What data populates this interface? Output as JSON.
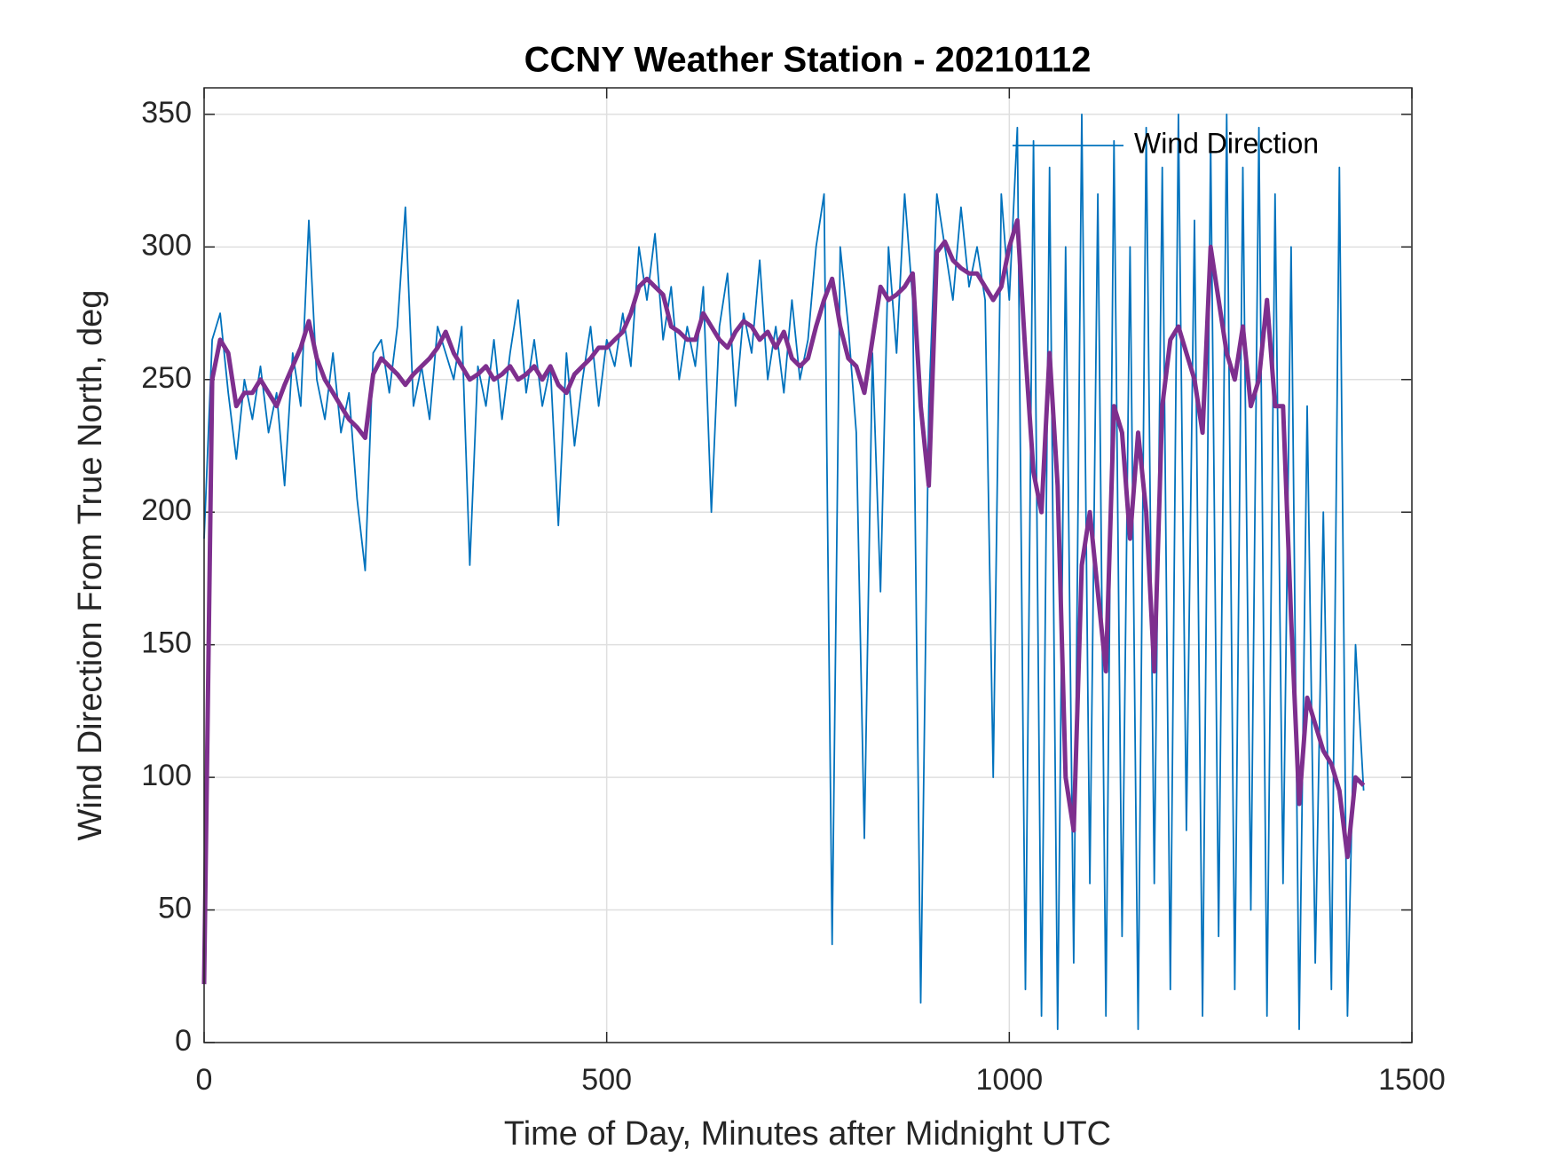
{
  "chart_data": {
    "type": "line",
    "title": "CCNY Weather Station - 20210112",
    "x_label": "Time of Day, Minutes after Midnight UTC",
    "y_label": "Wind Direction From True North, deg",
    "x": [
      0,
      10,
      20,
      30,
      40,
      50,
      60,
      70,
      80,
      90,
      100,
      110,
      120,
      130,
      140,
      150,
      160,
      170,
      180,
      190,
      200,
      210,
      220,
      230,
      240,
      250,
      260,
      270,
      280,
      290,
      300,
      310,
      320,
      330,
      340,
      350,
      360,
      370,
      380,
      390,
      400,
      410,
      420,
      430,
      440,
      450,
      460,
      470,
      480,
      490,
      500,
      510,
      520,
      530,
      540,
      550,
      560,
      570,
      580,
      590,
      600,
      610,
      620,
      630,
      640,
      650,
      660,
      670,
      680,
      690,
      700,
      710,
      720,
      730,
      740,
      750,
      760,
      770,
      780,
      790,
      800,
      810,
      820,
      830,
      840,
      850,
      860,
      870,
      880,
      890,
      900,
      910,
      920,
      930,
      940,
      950,
      960,
      970,
      980,
      990,
      1000,
      1010,
      1020,
      1030,
      1040,
      1050,
      1060,
      1070,
      1080,
      1090,
      1100,
      1110,
      1120,
      1130,
      1140,
      1150,
      1160,
      1170,
      1180,
      1190,
      1200,
      1210,
      1220,
      1230,
      1240,
      1250,
      1260,
      1270,
      1280,
      1290,
      1300,
      1310,
      1320,
      1330,
      1340,
      1350,
      1360,
      1370,
      1380,
      1390,
      1400,
      1410,
      1420,
      1430,
      1440
    ],
    "series": [
      {
        "name": "Wind Direction",
        "color": "#0072bd",
        "values": [
          190,
          265,
          275,
          245,
          220,
          250,
          235,
          255,
          230,
          245,
          210,
          260,
          240,
          310,
          250,
          235,
          260,
          230,
          245,
          205,
          178,
          260,
          265,
          245,
          270,
          315,
          240,
          255,
          235,
          270,
          260,
          250,
          270,
          180,
          255,
          240,
          265,
          235,
          260,
          280,
          245,
          265,
          240,
          255,
          195,
          260,
          225,
          250,
          270,
          240,
          265,
          255,
          275,
          255,
          300,
          280,
          305,
          265,
          285,
          250,
          270,
          255,
          285,
          200,
          270,
          290,
          240,
          275,
          260,
          295,
          250,
          270,
          245,
          280,
          250,
          265,
          300,
          320,
          37,
          300,
          270,
          230,
          77,
          260,
          170,
          300,
          260,
          320,
          280,
          15,
          240,
          320,
          300,
          280,
          315,
          285,
          300,
          280,
          100,
          320,
          280,
          345,
          20,
          340,
          10,
          330,
          5,
          300,
          30,
          350,
          60,
          320,
          10,
          340,
          40,
          300,
          5,
          345,
          60,
          330,
          20,
          350,
          80,
          310,
          10,
          340,
          40,
          350,
          20,
          330,
          50,
          345,
          10,
          320,
          60,
          300,
          5,
          240,
          30,
          200,
          20,
          330,
          10,
          150,
          95
        ]
      },
      {
        "color": "#7e2f8e",
        "values": [
          22,
          250,
          265,
          260,
          240,
          245,
          245,
          250,
          245,
          240,
          248,
          255,
          262,
          272,
          258,
          250,
          245,
          240,
          235,
          232,
          228,
          252,
          258,
          255,
          252,
          248,
          252,
          255,
          258,
          262,
          268,
          260,
          255,
          250,
          252,
          255,
          250,
          252,
          255,
          250,
          252,
          255,
          250,
          255,
          248,
          245,
          252,
          255,
          258,
          262,
          262,
          265,
          268,
          275,
          285,
          288,
          285,
          282,
          270,
          268,
          265,
          265,
          275,
          270,
          265,
          262,
          268,
          272,
          270,
          265,
          268,
          262,
          268,
          258,
          255,
          258,
          270,
          280,
          288,
          270,
          258,
          255,
          245,
          265,
          285,
          280,
          282,
          285,
          290,
          240,
          210,
          298,
          302,
          295,
          292,
          290,
          290,
          285,
          280,
          285,
          300,
          310,
          260,
          215,
          200,
          260,
          210,
          100,
          80,
          180,
          200,
          170,
          140,
          240,
          230,
          190,
          230,
          200,
          140,
          240,
          265,
          270,
          260,
          250,
          230,
          300,
          280,
          260,
          250,
          270,
          240,
          250,
          280,
          240,
          240,
          160,
          90,
          130,
          120,
          110,
          105,
          95,
          70,
          100,
          97
        ]
      }
    ],
    "xlim": [
      0,
      1500
    ],
    "xticks": [
      0,
      500,
      1000,
      1500
    ],
    "ylim": [
      0,
      360
    ],
    "yticks": [
      0,
      50,
      100,
      150,
      200,
      250,
      300,
      350
    ],
    "grid": true,
    "legend": "northeast"
  }
}
